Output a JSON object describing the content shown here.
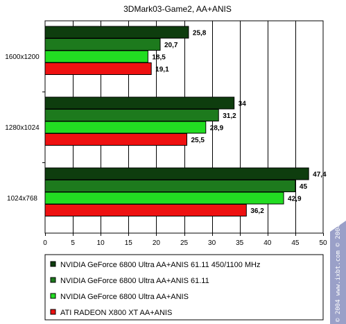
{
  "chart_data": {
    "type": "bar",
    "orientation": "horizontal",
    "title": "3DMark03-Game2, AA+ANIS",
    "categories": [
      "1600x1200",
      "1280x1024",
      "1024x768"
    ],
    "series": [
      {
        "name": "NVIDIA GeForce 6800 Ultra AA+ANIS 61.11 450/1100 MHz",
        "color": "#0e3d0e",
        "values": [
          25.8,
          34,
          47.4
        ],
        "labels": [
          "25,8",
          "34",
          "47,4"
        ]
      },
      {
        "name": "NVIDIA GeForce 6800 Ultra AA+ANIS 61.11",
        "color": "#1d7a1d",
        "values": [
          20.7,
          31.2,
          45
        ],
        "labels": [
          "20,7",
          "31,2",
          "45"
        ]
      },
      {
        "name": "NVIDIA GeForce 6800 Ultra AA+ANIS",
        "color": "#22dd22",
        "values": [
          18.5,
          28.9,
          42.9
        ],
        "labels": [
          "18,5",
          "28,9",
          "42,9"
        ]
      },
      {
        "name": "ATI RADEON X800 XT AA+ANIS",
        "color": "#ee1111",
        "values": [
          19.1,
          25.5,
          36.2
        ],
        "labels": [
          "19,1",
          "25,5",
          "36,2"
        ]
      }
    ],
    "xlim": [
      0,
      50
    ],
    "xticks": [
      "0",
      "5",
      "10",
      "15",
      "20",
      "25",
      "30",
      "35",
      "40",
      "45",
      "50"
    ],
    "grid": "vertical",
    "legend_position": "bottom",
    "plot_background": "#ffffff",
    "frame_background": "#ffffff"
  },
  "watermark": "© 2004 www.ixbt.com  © 2004 www.digit-life.com"
}
